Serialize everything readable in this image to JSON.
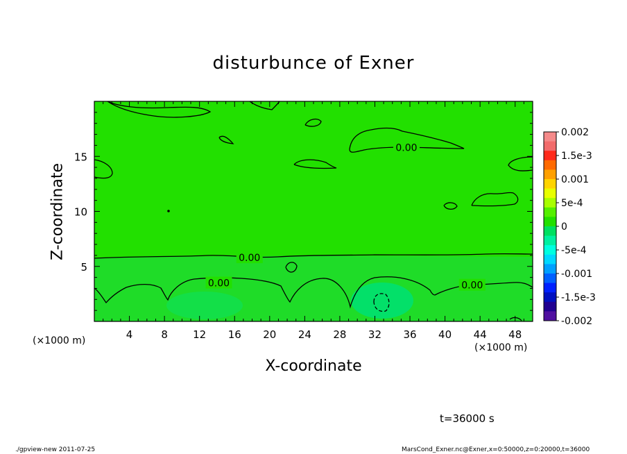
{
  "chart_data": {
    "type": "heatmap",
    "title": "disturbunce of Exner",
    "xlabel": "X-coordinate",
    "ylabel": "Z-coordinate",
    "x_unit": "(×1000 m)",
    "xlim": [
      0,
      50
    ],
    "ylim": [
      0,
      20
    ],
    "x_ticks": [
      4,
      8,
      12,
      16,
      20,
      24,
      28,
      32,
      36,
      40,
      44,
      48
    ],
    "y_ticks": [
      5,
      10,
      15
    ],
    "time_label": "t=36000 s",
    "colorbar": {
      "labels": [
        "0.002",
        "1.5e-3",
        "0.001",
        "5e-4",
        "0",
        "-5e-4",
        "-0.001",
        "-1.5e-3",
        "-0.002"
      ],
      "values": [
        0.002,
        0.0015,
        0.001,
        0.0005,
        0,
        -0.0005,
        -0.001,
        -0.0015,
        -0.002
      ],
      "colors": [
        "#f58a8a",
        "#f26b6b",
        "#ff2a1a",
        "#ff6a00",
        "#ffa000",
        "#ffd400",
        "#e8ff00",
        "#a8ff00",
        "#55f000",
        "#22e000",
        "#00e060",
        "#00f0a0",
        "#00ffe0",
        "#00d8ff",
        "#00a0ff",
        "#0060ff",
        "#0020ff",
        "#0010c0",
        "#200090",
        "#5010a0"
      ]
    },
    "contour_labels": [
      {
        "text": "0.00",
        "x": 35.6,
        "z": 15.8
      },
      {
        "text": "0.00",
        "x": 17.7,
        "z": 5.8
      },
      {
        "text": "0.00",
        "x": 14.2,
        "z": 3.5
      },
      {
        "text": "0.00",
        "x": 43.1,
        "z": 3.3
      }
    ]
  },
  "footer": {
    "left": "./gpview-new   2011-07-25",
    "right": "MarsCond_Exner.nc@Exner,x=0:50000,z=0:20000,t=36000"
  }
}
